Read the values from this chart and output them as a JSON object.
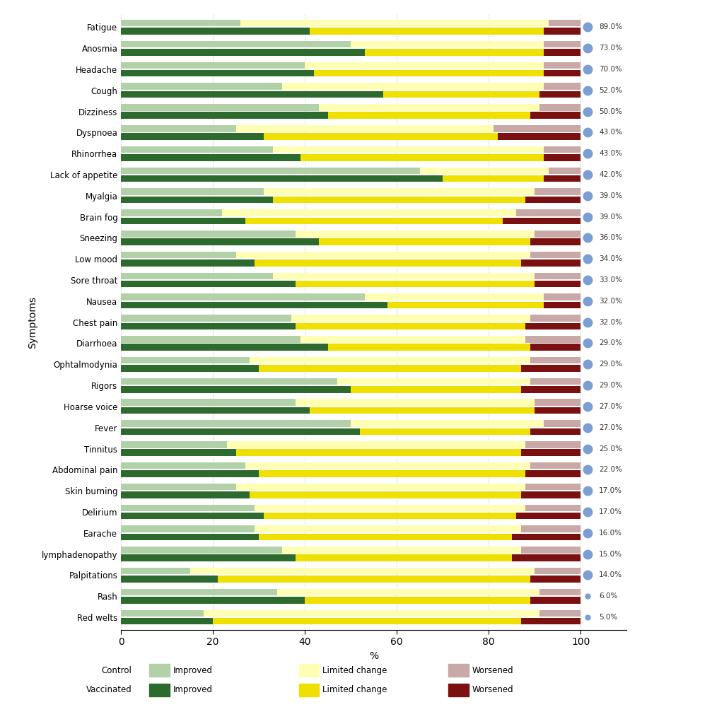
{
  "symptoms": [
    "Fatigue",
    "Anosmia",
    "Headache",
    "Cough",
    "Dizziness",
    "Dyspnoea",
    "Rhinorrhea",
    "Lack of appetite",
    "Myalgia",
    "Brain fog",
    "Sneezing",
    "Low mood",
    "Sore throat",
    "Nausea",
    "Chest pain",
    "Diarrhoea",
    "Ophtalmodynia",
    "Rigors",
    "Hoarse voice",
    "Fever",
    "Tinnitus",
    "Abdominal pain",
    "Skin burning",
    "Delirium",
    "Earache",
    "lymphadenopathy",
    "Palpitations",
    "Rash",
    "Red welts"
  ],
  "percentages": [
    89.0,
    73.0,
    70.0,
    52.0,
    50.0,
    43.0,
    43.0,
    42.0,
    39.0,
    39.0,
    36.0,
    34.0,
    33.0,
    32.0,
    32.0,
    29.0,
    29.0,
    29.0,
    27.0,
    27.0,
    25.0,
    22.0,
    17.0,
    17.0,
    16.0,
    15.0,
    14.0,
    6.0,
    5.0
  ],
  "control": {
    "improved": [
      26,
      50,
      40,
      35,
      43,
      25,
      33,
      65,
      31,
      22,
      38,
      25,
      33,
      53,
      37,
      39,
      28,
      47,
      38,
      50,
      23,
      27,
      25,
      29,
      29,
      35,
      15,
      34,
      18
    ],
    "limited": [
      67,
      42,
      52,
      57,
      48,
      56,
      59,
      28,
      59,
      64,
      52,
      64,
      57,
      39,
      52,
      49,
      61,
      42,
      52,
      42,
      65,
      62,
      63,
      59,
      58,
      52,
      75,
      57,
      73
    ],
    "worsened": [
      7,
      8,
      8,
      8,
      9,
      19,
      8,
      7,
      10,
      14,
      10,
      11,
      10,
      8,
      11,
      12,
      11,
      11,
      10,
      8,
      12,
      11,
      12,
      12,
      13,
      13,
      10,
      9,
      9
    ]
  },
  "vaccinated": {
    "improved": [
      41,
      53,
      42,
      57,
      45,
      31,
      39,
      70,
      33,
      27,
      43,
      29,
      38,
      58,
      38,
      45,
      30,
      50,
      41,
      52,
      25,
      30,
      28,
      31,
      30,
      38,
      21,
      40,
      20
    ],
    "limited": [
      51,
      39,
      50,
      34,
      44,
      51,
      53,
      22,
      55,
      56,
      46,
      58,
      52,
      34,
      50,
      44,
      57,
      37,
      49,
      37,
      62,
      58,
      59,
      55,
      55,
      47,
      68,
      49,
      67
    ],
    "worsened": [
      8,
      8,
      8,
      9,
      11,
      18,
      8,
      8,
      12,
      17,
      11,
      13,
      10,
      8,
      12,
      11,
      13,
      13,
      10,
      11,
      13,
      12,
      13,
      14,
      15,
      15,
      11,
      11,
      13
    ]
  },
  "colors": {
    "control_improved": "#b2d1a8",
    "control_limited": "#ffffb3",
    "control_worsened": "#c9a8a8",
    "vacc_improved": "#2d6a2d",
    "vacc_limited": "#f0e000",
    "vacc_worsened": "#7b1010"
  },
  "dot_color": "#7b9fd4",
  "ylabel": "Symptoms",
  "xlabel": "%",
  "xlim": [
    0,
    110
  ],
  "bar_height": 0.32,
  "figsize": [
    10.07,
    10.24
  ],
  "dpi": 100
}
